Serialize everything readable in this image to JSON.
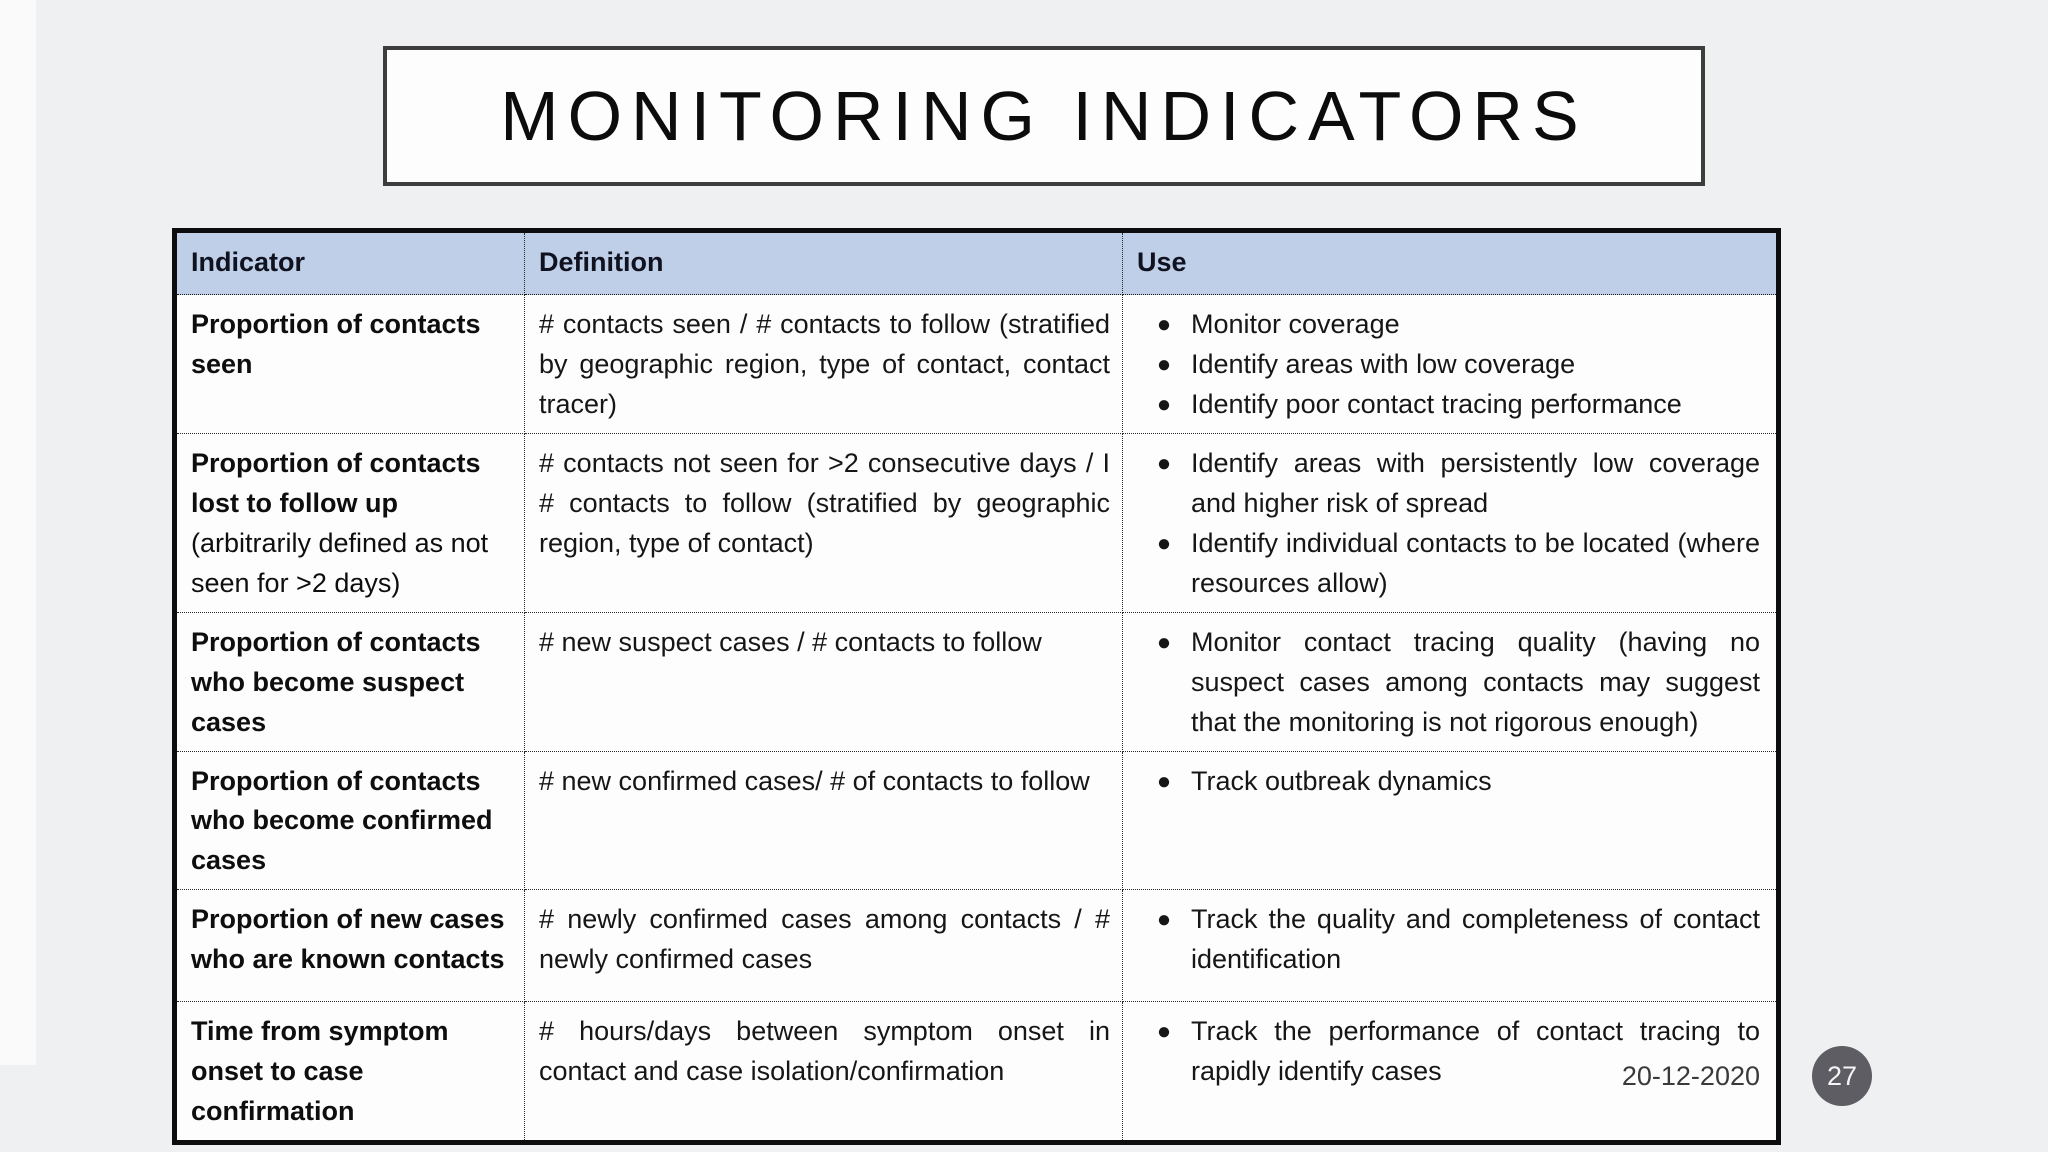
{
  "slide": {
    "title": "MONITORING INDICATORS",
    "footer": {
      "date": "20-12-2020",
      "page_number": "27"
    }
  },
  "colors": {
    "header_bg": "#bfcfe7",
    "page_badge_bg": "#5d5d63",
    "slide_bg": "#eef0f1",
    "table_border": "#0d0d0d"
  },
  "table": {
    "headers": {
      "indicator": "Indicator",
      "definition": "Definition",
      "use": "Use"
    },
    "rows": [
      {
        "indicator": "Proportion of contacts seen",
        "definition": "# contacts seen / # contacts to follow (stratified by geographic region, type of contact, contact tracer)",
        "uses": [
          "Monitor coverage",
          "Identify areas with low coverage",
          "Identify poor contact tracing performance"
        ]
      },
      {
        "indicator": "Proportion of contacts lost to follow up",
        "indicator_note": "(arbitrarily defined as not seen for >2 days)",
        "definition": "# contacts not seen for >2 consecutive days / I # contacts to follow (stratified by geographic region, type of contact)",
        "uses": [
          "Identify areas with persistently low coverage and higher risk of spread",
          "Identify individual contacts to be located (where resources allow)"
        ]
      },
      {
        "indicator": "Proportion of contacts who become suspect cases",
        "definition": "# new suspect cases / # contacts to follow",
        "uses": [
          "Monitor contact tracing quality (having no suspect cases among contacts may suggest that the monitoring is not rigorous enough)"
        ]
      },
      {
        "indicator": "Proportion of contacts who become confirmed cases",
        "definition": "# new confirmed cases/ # of contacts to follow",
        "uses": [
          "Track outbreak dynamics"
        ]
      },
      {
        "indicator": "Proportion of new cases who are known contacts",
        "definition": "# newly confirmed cases among contacts / # newly confirmed cases",
        "uses": [
          "Track the quality and completeness of contact identification"
        ]
      },
      {
        "indicator": "Time from symptom onset to case confirmation",
        "definition": "# hours/days between symptom onset in contact and case isolation/confirmation",
        "uses": [
          "Track the performance of contact tracing to rapidly identify cases"
        ]
      }
    ]
  }
}
